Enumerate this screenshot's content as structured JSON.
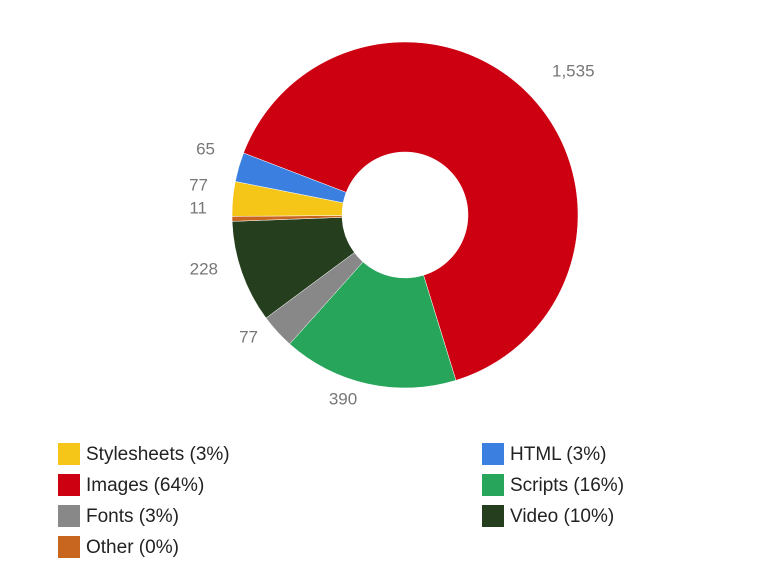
{
  "chart_data": {
    "type": "donut",
    "categories": [
      "Images (64%)",
      "Scripts (16%)",
      "Fonts (3%)",
      "Video (10%)",
      "Other (0%)",
      "Stylesheets (3%)",
      "HTML (3%)"
    ],
    "values": [
      1535,
      390,
      77,
      228,
      11,
      77,
      65
    ],
    "value_labels": [
      "1,535",
      "390",
      "77",
      "228",
      "11",
      "77",
      "65"
    ],
    "colors": [
      "#cc0011",
      "#27a55a",
      "#888888",
      "#253f1e",
      "#c8651f",
      "#f5c518",
      "#3b7fe0"
    ]
  }
}
